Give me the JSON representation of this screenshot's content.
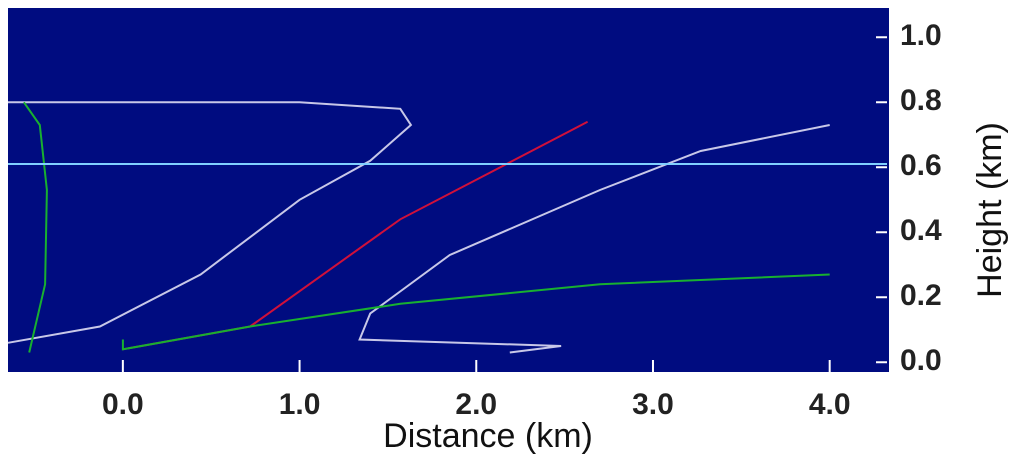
{
  "chart_data": {
    "type": "line",
    "xlabel": "Distance (km)",
    "ylabel": "Height (km)",
    "xlim": [
      -0.65,
      4.33
    ],
    "ylim": [
      -0.03,
      1.09
    ],
    "xticks": [
      {
        "value": 0,
        "label": "0.0"
      },
      {
        "value": 1,
        "label": "1.0"
      },
      {
        "value": 2,
        "label": "2.0"
      },
      {
        "value": 3,
        "label": "3.0"
      },
      {
        "value": 4,
        "label": "4.0"
      }
    ],
    "yticks": [
      {
        "value": 0,
        "label": "0.0"
      },
      {
        "value": 0.2,
        "label": "0.2"
      },
      {
        "value": 0.4,
        "label": "0.4"
      },
      {
        "value": 0.6,
        "label": "0.6"
      },
      {
        "value": 0.8,
        "label": "0.8"
      },
      {
        "value": 1,
        "label": "1.0"
      }
    ],
    "background": "#000c80",
    "series": [
      {
        "color": "#c8c8e8",
        "x": [
          -0.65,
          -0.13,
          0.44,
          1.0,
          1.4,
          1.63,
          1.57,
          1.0,
          -0.65
        ],
        "values": [
          0.06,
          0.11,
          0.27,
          0.5,
          0.62,
          0.73,
          0.78,
          0.8,
          0.8
        ]
      },
      {
        "color": "#d0103a",
        "x": [
          0,
          0.72,
          1.57,
          2.63
        ],
        "values": [
          0.04,
          0.11,
          0.44,
          0.74
        ]
      },
      {
        "color": "#c8c8e8",
        "x": [
          2.19,
          2.48,
          1.34,
          1.4,
          1.85,
          2.7,
          3.27,
          4.0
        ],
        "values": [
          0.03,
          0.05,
          0.07,
          0.15,
          0.33,
          0.53,
          0.65,
          0.73
        ]
      },
      {
        "color": "#18b030",
        "x": [
          0,
          0,
          0.72,
          1.57,
          2.7,
          4.0
        ],
        "values": [
          0.07,
          0.04,
          0.11,
          0.18,
          0.24,
          0.27
        ]
      },
      {
        "color": "#18b030",
        "x": [
          -0.53,
          -0.44,
          -0.43,
          -0.47,
          -0.56
        ],
        "values": [
          0.03,
          0.24,
          0.53,
          0.73,
          0.8
        ]
      },
      {
        "color": "#80d0ff",
        "x": [
          -0.65,
          4.33
        ],
        "values": [
          0.61,
          0.61
        ]
      }
    ]
  }
}
